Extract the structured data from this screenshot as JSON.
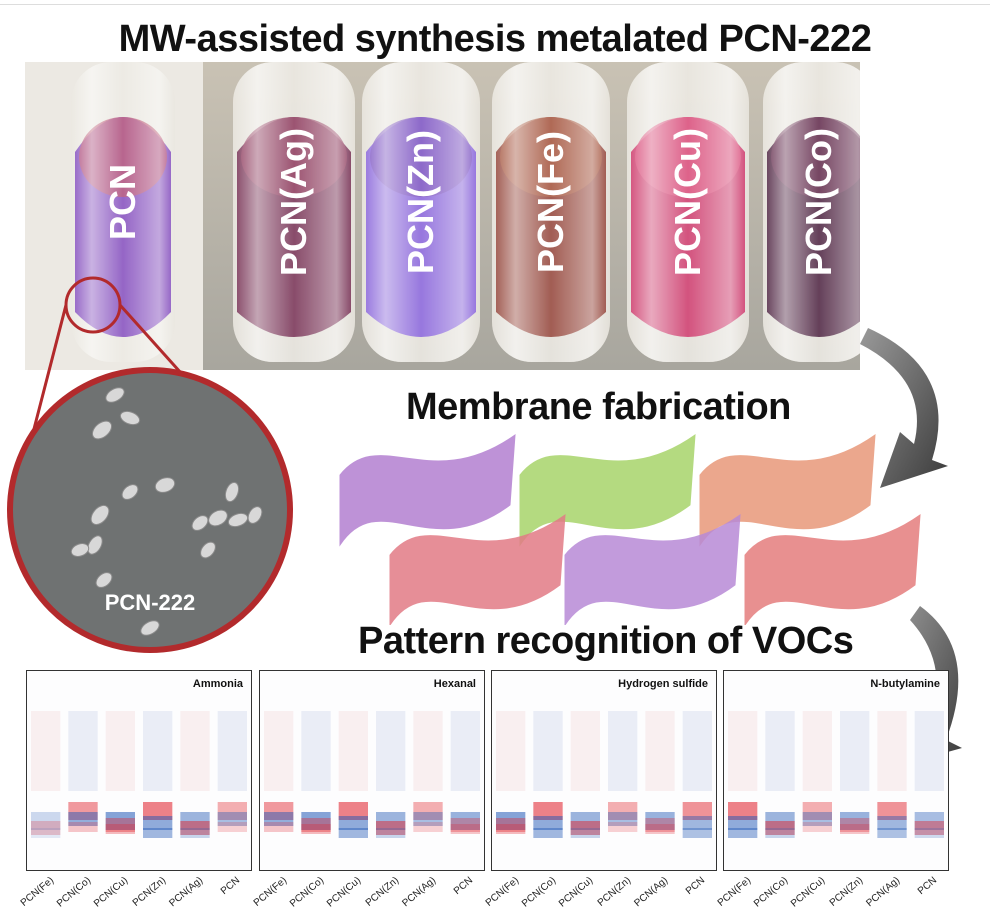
{
  "title": "MW-assisted synthesis metalated PCN-222",
  "tubes": [
    {
      "label": "PCN",
      "color": "#7a3fb8",
      "cap": "#b24060"
    },
    {
      "label": "PCN(Ag)",
      "color": "#6b1f45",
      "cap": "#8a2c50"
    },
    {
      "label": "PCN(Zn)",
      "color": "#7d55d6",
      "cap": "#6d3fb5"
    },
    {
      "label": "PCN(Fe)",
      "color": "#8a3428",
      "cap": "#a0482c"
    },
    {
      "label": "PCN(Cu)",
      "color": "#c8285e",
      "cap": "#d84070"
    },
    {
      "label": "PCN(Co)",
      "color": "#3e1030",
      "cap": "#5a1a40"
    }
  ],
  "sem_label": "PCN-222",
  "membrane_title": "Membrane fabrication",
  "membrane_colors": [
    "#b37fd1",
    "#a8d46a",
    "#e8987a",
    "#e27b86",
    "#b88ad6",
    "#e57d7d"
  ],
  "pattern_title": "Pattern recognition of VOCs",
  "chart_data": {
    "type": "heatmap",
    "columns": [
      "PCN(Fe)",
      "PCN(Co)",
      "PCN(Cu)",
      "PCN(Zn)",
      "PCN(Ag)",
      "PCN"
    ],
    "panels": [
      {
        "title": "Ammonia",
        "ticks": [
          "PCN(Fe)",
          "PCN(Co)",
          "PCN(Cu)",
          "PCN(Zn)",
          "PCN(Ag)",
          "PCN"
        ]
      },
      {
        "title": "Hexanal",
        "ticks": [
          "PCN(Fe)",
          "PCN(Co)",
          "PCN(Cu)",
          "PCN(Zn)",
          "PCN(Ag)",
          "PCN"
        ]
      },
      {
        "title": "Hydrogen sulfide",
        "ticks": [
          "PCN(Fe)",
          "PCN(Co)",
          "PCN(Cu)",
          "PCN(Zn)",
          "PCN(Ag)",
          "PCN"
        ]
      },
      {
        "title": "N-butylamine",
        "ticks": [
          "PCN(Fe)",
          "PCN(Co)",
          "PCN(Cu)",
          "PCN(Zn)",
          "PCN(Ag)",
          "PCN"
        ]
      }
    ],
    "colors": {
      "positive": "#e0202a",
      "negative": "#1f56b5",
      "neutral": "#ffffff"
    }
  }
}
